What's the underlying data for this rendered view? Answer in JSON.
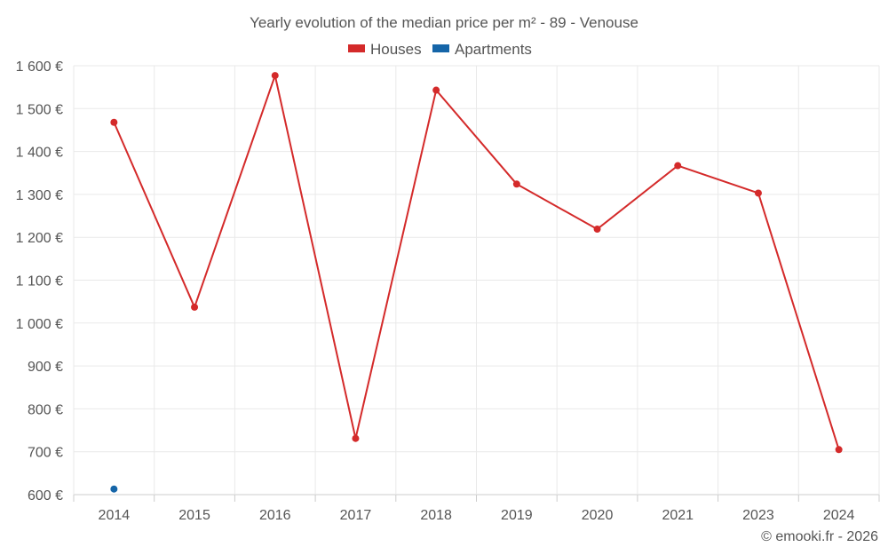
{
  "chart_data": {
    "type": "line",
    "title": "Yearly evolution of the median price per m² - 89 - Venouse",
    "categories": [
      "2014",
      "2015",
      "2016",
      "2017",
      "2018",
      "2019",
      "2020",
      "2021",
      "2023",
      "2024"
    ],
    "series": [
      {
        "name": "Houses",
        "color": "#d42a2a",
        "values": [
          1468,
          1037,
          1577,
          731,
          1543,
          1324,
          1219,
          1367,
          1303,
          705
        ]
      },
      {
        "name": "Apartments",
        "color": "#1565a8",
        "values": [
          613,
          null,
          null,
          null,
          null,
          null,
          null,
          null,
          null,
          null
        ]
      }
    ],
    "ylim": [
      600,
      1600
    ],
    "yticks": [
      600,
      700,
      800,
      900,
      1000,
      1100,
      1200,
      1300,
      1400,
      1500,
      1600
    ],
    "ytick_labels": [
      "600 €",
      "700 €",
      "800 €",
      "900 €",
      "1 000 €",
      "1 100 €",
      "1 200 €",
      "1 300 €",
      "1 400 €",
      "1 500 €",
      "1 600 €"
    ],
    "grid": true,
    "legend_position": "top-center"
  },
  "credit": "© emooki.fr - 2026"
}
